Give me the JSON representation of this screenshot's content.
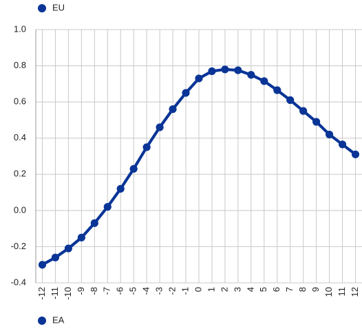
{
  "chart_data": {
    "type": "line",
    "x": [
      -12,
      -11,
      -10,
      -9,
      -8,
      -7,
      -6,
      -5,
      -4,
      -3,
      -2,
      -1,
      0,
      1,
      2,
      3,
      4,
      5,
      6,
      7,
      8,
      9,
      10,
      11,
      12
    ],
    "series": [
      {
        "name": "EU",
        "color": "#0a3597",
        "values": [
          -0.3,
          -0.26,
          -0.21,
          -0.15,
          -0.07,
          0.02,
          0.12,
          0.23,
          0.35,
          0.46,
          0.56,
          0.65,
          0.73,
          0.77,
          0.78,
          0.775,
          0.75,
          0.715,
          0.665,
          0.61,
          0.55,
          0.49,
          0.42,
          0.365,
          0.31
        ]
      },
      {
        "name": "EA",
        "color": "#0a3597",
        "values": [
          -0.3,
          -0.26,
          -0.21,
          -0.15,
          -0.07,
          0.02,
          0.12,
          0.23,
          0.35,
          0.46,
          0.56,
          0.65,
          0.73,
          0.77,
          0.78,
          0.775,
          0.75,
          0.715,
          0.665,
          0.61,
          0.55,
          0.49,
          0.42,
          0.365,
          0.31
        ]
      }
    ],
    "xlim": [
      -12.5,
      12.5
    ],
    "xticks": [
      -12,
      -11,
      -10,
      -9,
      -8,
      -7,
      -6,
      -5,
      -4,
      -3,
      -2,
      -1,
      0,
      1,
      2,
      3,
      4,
      5,
      6,
      7,
      8,
      9,
      10,
      11,
      12
    ],
    "ylim": [
      -0.4,
      1.0
    ],
    "yticks": [
      {
        "value": 1.0,
        "label": "1.0"
      },
      0.8,
      0.6,
      0.4,
      0.2,
      {
        "value": 0,
        "label": "0.0"
      },
      -0.2,
      -0.4
    ],
    "grid": true
  }
}
